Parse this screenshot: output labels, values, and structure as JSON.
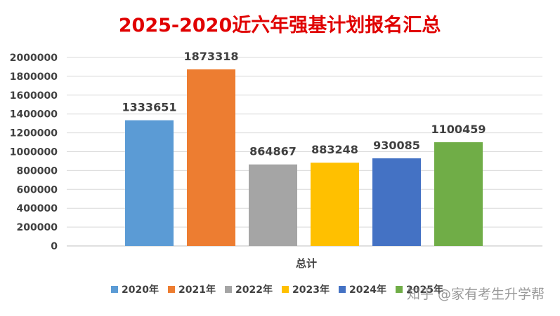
{
  "chart_data": {
    "type": "bar",
    "title": "2025-2020近六年强基计划报名汇总",
    "category_label": "总计",
    "series": [
      {
        "name": "2020年",
        "value": 1333651,
        "color": "#5b9bd5"
      },
      {
        "name": "2021年",
        "value": 1873318,
        "color": "#ed7d31"
      },
      {
        "name": "2022年",
        "value": 864867,
        "color": "#a5a5a5"
      },
      {
        "name": "2023年",
        "value": 883248,
        "color": "#ffc000"
      },
      {
        "name": "2024年",
        "value": 930085,
        "color": "#4472c4"
      },
      {
        "name": "2025年",
        "value": 1100459,
        "color": "#70ad47"
      }
    ],
    "ylim": [
      0,
      2000000
    ],
    "yticks": [
      "0",
      "200000",
      "400000",
      "600000",
      "800000",
      "1000000",
      "1200000",
      "1400000",
      "1600000",
      "1800000",
      "2000000"
    ],
    "grid": true,
    "legend_position": "bottom"
  },
  "watermark": "知乎 @家有考生升学帮"
}
